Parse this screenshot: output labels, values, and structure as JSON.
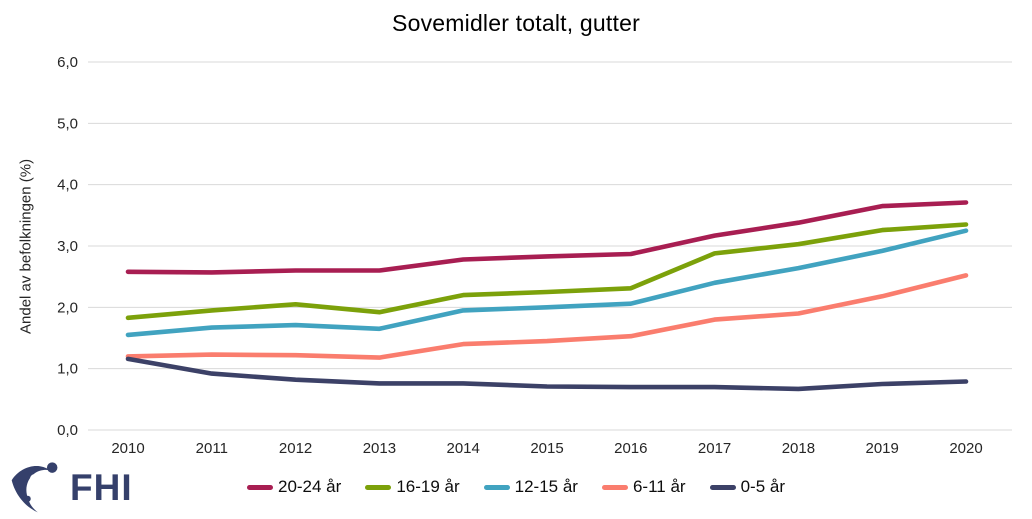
{
  "title": "Sovemidler totalt, gutter",
  "chart_data": {
    "type": "line",
    "x": [
      2010,
      2011,
      2012,
      2013,
      2014,
      2015,
      2016,
      2017,
      2018,
      2019,
      2020
    ],
    "series": [
      {
        "name": "20-24 år",
        "color": "#a81e52",
        "values": [
          2.58,
          2.57,
          2.6,
          2.6,
          2.78,
          2.83,
          2.87,
          3.17,
          3.38,
          3.65,
          3.71
        ]
      },
      {
        "name": "16-19 år",
        "color": "#7ca10a",
        "values": [
          1.83,
          1.95,
          2.05,
          1.92,
          2.2,
          2.25,
          2.31,
          2.88,
          3.03,
          3.26,
          3.35
        ]
      },
      {
        "name": "12-15 år",
        "color": "#41a3c0",
        "values": [
          1.55,
          1.67,
          1.71,
          1.65,
          1.95,
          2.0,
          2.06,
          2.4,
          2.64,
          2.92,
          3.25
        ]
      },
      {
        "name": "6-11 år",
        "color": "#fa7d6e",
        "values": [
          1.2,
          1.23,
          1.22,
          1.18,
          1.4,
          1.45,
          1.53,
          1.8,
          1.9,
          2.18,
          2.52
        ]
      },
      {
        "name": "0-5 år",
        "color": "#3c4167",
        "values": [
          1.16,
          0.92,
          0.82,
          0.76,
          0.76,
          0.71,
          0.7,
          0.7,
          0.67,
          0.75,
          0.79
        ]
      }
    ],
    "title": "Sovemidler totalt, gutter",
    "xlabel": "",
    "ylabel": "Andel av befolkningen (%)",
    "ylim": [
      0,
      6
    ],
    "ytick_labels": [
      "0,0",
      "1,0",
      "2,0",
      "3,0",
      "4,0",
      "5,0",
      "6,0"
    ],
    "grid": "horizontal-only",
    "grid_color": "#d9d9d9",
    "legend_position": "bottom"
  },
  "logo": {
    "text": "FHI",
    "color": "#35406b"
  }
}
